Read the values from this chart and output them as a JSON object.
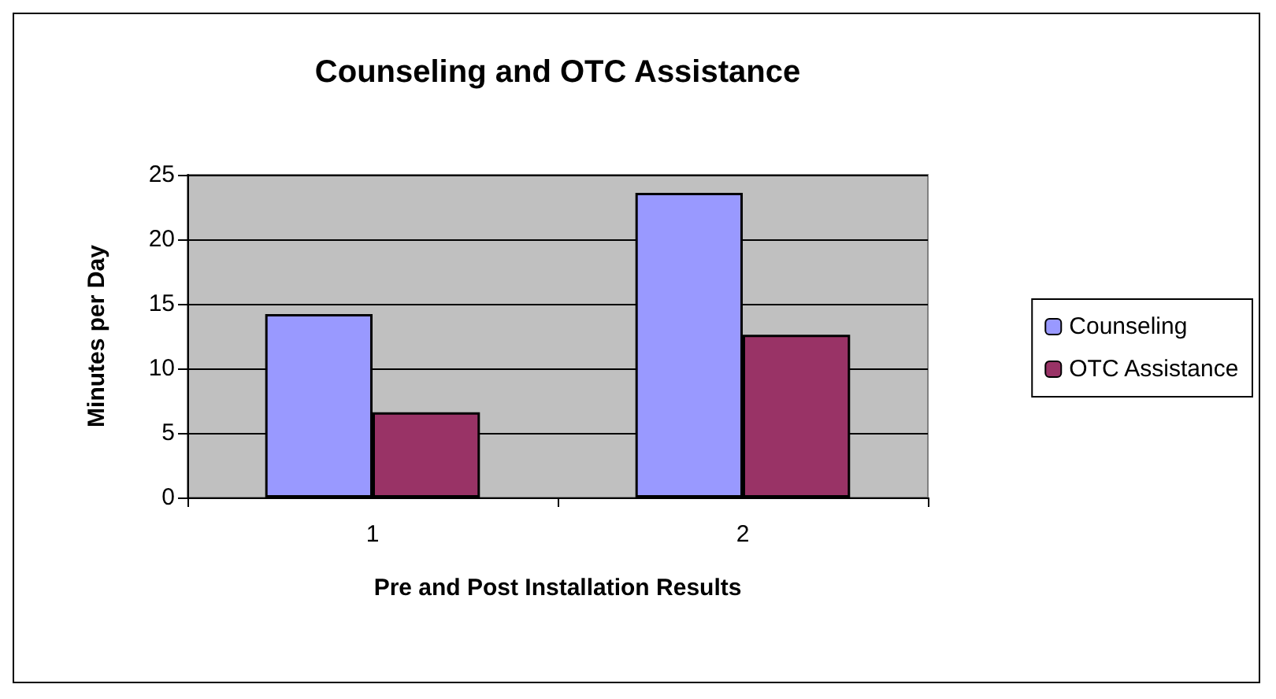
{
  "chart_data": {
    "type": "bar",
    "title": "Counseling and OTC Assistance",
    "xlabel": "Pre and Post Installation Results",
    "ylabel": "Minutes per Day",
    "categories": [
      "1",
      "2"
    ],
    "series": [
      {
        "name": "Counseling",
        "color": "#9999ff",
        "values": [
          14.2,
          23.6
        ]
      },
      {
        "name": "OTC Assistance",
        "color": "#993366",
        "values": [
          6.6,
          12.6
        ]
      }
    ],
    "ylim": [
      0,
      25
    ],
    "yticks": [
      0,
      5,
      10,
      15,
      20,
      25
    ],
    "grid": "y",
    "legend": "right"
  }
}
